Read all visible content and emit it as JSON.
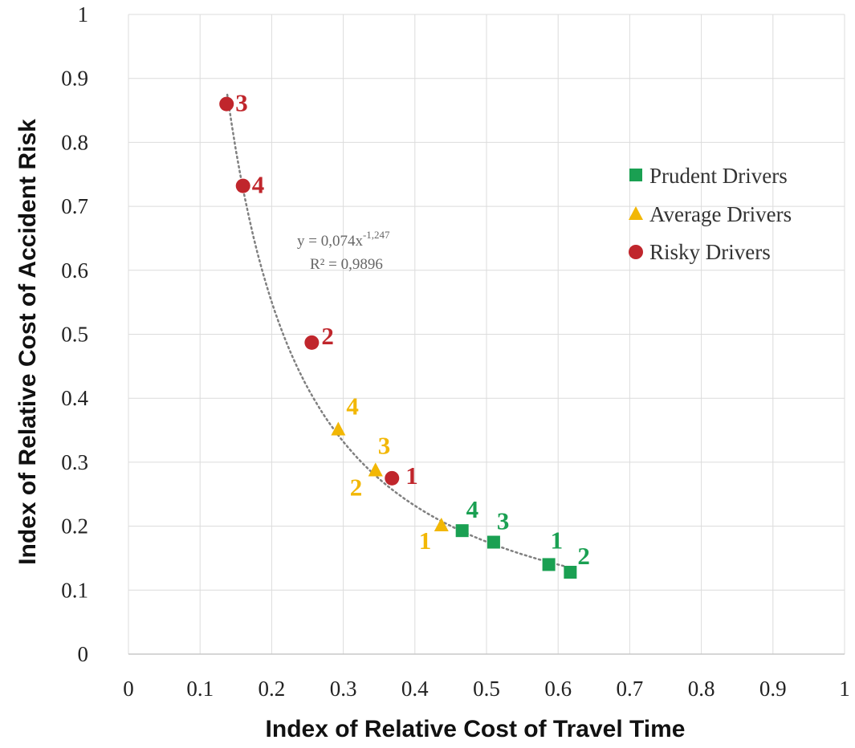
{
  "chart_data": {
    "type": "scatter",
    "xlabel": "Index of Relative Cost of Travel Time",
    "ylabel": "Index of Relative Cost of Accident Risk",
    "xlim": [
      0,
      1
    ],
    "ylim": [
      0,
      1
    ],
    "x_ticks": [
      "0",
      "0.1",
      "0.2",
      "0.3",
      "0.4",
      "0.5",
      "0.6",
      "0.7",
      "0.8",
      "0.9",
      "1"
    ],
    "y_ticks": [
      "0",
      "0.1",
      "0.2",
      "0.3",
      "0.4",
      "0.5",
      "0.6",
      "0.7",
      "0.8",
      "0.9",
      "1"
    ],
    "grid": true,
    "legend_position": "right",
    "series": [
      {
        "name": "Prudent Drivers",
        "marker": "square",
        "color": "#1aa052",
        "points": [
          {
            "label": "1",
            "x": 0.587,
            "y": 0.14
          },
          {
            "label": "2",
            "x": 0.617,
            "y": 0.128
          },
          {
            "label": "3",
            "x": 0.51,
            "y": 0.175
          },
          {
            "label": "4",
            "x": 0.466,
            "y": 0.193
          }
        ]
      },
      {
        "name": "Average Drivers",
        "marker": "triangle",
        "color": "#f2b705",
        "points": [
          {
            "label": "1",
            "x": 0.437,
            "y": 0.202
          },
          {
            "label": "2",
            "x": 0.345,
            "y": 0.288
          },
          {
            "label": "3",
            "x": 0.345,
            "y": 0.288
          },
          {
            "label": "4",
            "x": 0.293,
            "y": 0.352
          }
        ]
      },
      {
        "name": "Risky Drivers",
        "marker": "circle",
        "color": "#c0262c",
        "points": [
          {
            "label": "1",
            "x": 0.368,
            "y": 0.275
          },
          {
            "label": "2",
            "x": 0.256,
            "y": 0.487
          },
          {
            "label": "3",
            "x": 0.137,
            "y": 0.86
          },
          {
            "label": "4",
            "x": 0.16,
            "y": 0.732
          }
        ]
      }
    ],
    "trendline": {
      "type": "power",
      "a": 0.074,
      "b": -1.247,
      "x_range": [
        0.138,
        0.62
      ],
      "style": "dotted",
      "color": "#808080",
      "equation": "y = 0,074x",
      "exponent": "-1,247",
      "r_squared": "R² = 0,9896"
    }
  }
}
